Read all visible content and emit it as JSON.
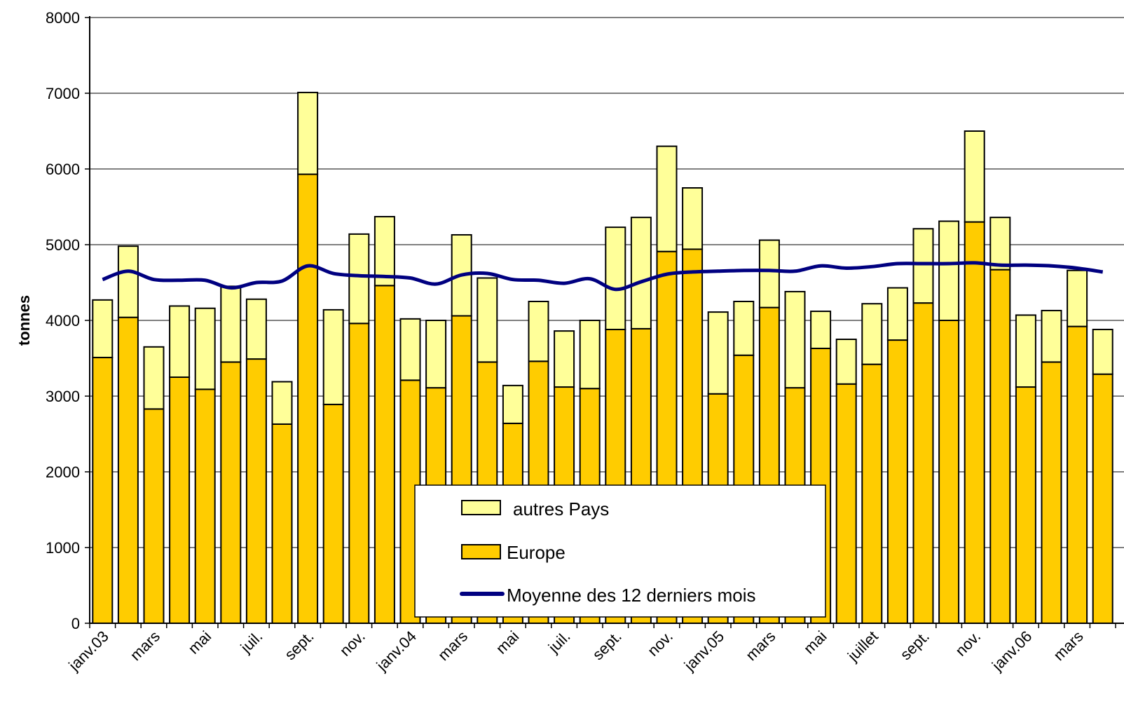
{
  "chart_data": {
    "type": "bar",
    "stacked": true,
    "ylabel": "tonnes",
    "xlabel": "",
    "ylim": [
      0,
      8000
    ],
    "yticks": [
      0,
      1000,
      2000,
      3000,
      4000,
      5000,
      6000,
      7000,
      8000
    ],
    "grid": true,
    "legend_position": "bottom-center",
    "x_tick_labels": [
      "janv.03",
      "mars",
      "mai",
      "juil.",
      "sept.",
      "nov.",
      "janv.04",
      "mars",
      "mai",
      "juil.",
      "sept.",
      "nov.",
      "janv.05",
      "mars",
      "mai",
      "juillet",
      "sept.",
      "nov.",
      "janv.06",
      "mars"
    ],
    "months": [
      "2003-01",
      "2003-02",
      "2003-03",
      "2003-04",
      "2003-05",
      "2003-06",
      "2003-07",
      "2003-08",
      "2003-09",
      "2003-10",
      "2003-11",
      "2003-12",
      "2004-01",
      "2004-02",
      "2004-03",
      "2004-04",
      "2004-05",
      "2004-06",
      "2004-07",
      "2004-08",
      "2004-09",
      "2004-10",
      "2004-11",
      "2004-12",
      "2005-01",
      "2005-02",
      "2005-03",
      "2005-04",
      "2005-05",
      "2005-06",
      "2005-07",
      "2005-08",
      "2005-09",
      "2005-10",
      "2005-11",
      "2005-12",
      "2006-01",
      "2006-02",
      "2006-03",
      "2006-04"
    ],
    "series": [
      {
        "name": "Europe",
        "color": "#FFCC00",
        "values": [
          3510,
          4040,
          2830,
          3250,
          3090,
          3450,
          3490,
          2630,
          5930,
          2890,
          3960,
          4460,
          3210,
          3110,
          4060,
          3450,
          2640,
          3460,
          3120,
          3100,
          3880,
          3890,
          4910,
          4940,
          3030,
          3540,
          4170,
          3110,
          3630,
          3160,
          3420,
          3740,
          4230,
          4000,
          5300,
          4670,
          3120,
          3450,
          3920,
          3290
        ]
      },
      {
        "name": "autres Pays",
        "color": "#FFFF99",
        "values": [
          760,
          940,
          820,
          940,
          1070,
          1000,
          790,
          560,
          1080,
          1250,
          1180,
          910,
          810,
          890,
          1070,
          1110,
          500,
          790,
          740,
          900,
          1350,
          1470,
          1390,
          810,
          1080,
          710,
          890,
          1270,
          490,
          590,
          800,
          690,
          980,
          1310,
          1200,
          690,
          950,
          680,
          740,
          590
        ]
      }
    ],
    "line_series": {
      "name": "Moyenne des 12 derniers mois",
      "color": "#000080",
      "values": [
        4540,
        4650,
        4540,
        4530,
        4530,
        4430,
        4500,
        4520,
        4720,
        4620,
        4590,
        4580,
        4560,
        4480,
        4600,
        4620,
        4540,
        4530,
        4490,
        4550,
        4410,
        4510,
        4610,
        4640,
        4650,
        4660,
        4660,
        4650,
        4720,
        4690,
        4710,
        4750,
        4750,
        4750,
        4760,
        4730,
        4730,
        4720,
        4690,
        4640
      ]
    }
  }
}
